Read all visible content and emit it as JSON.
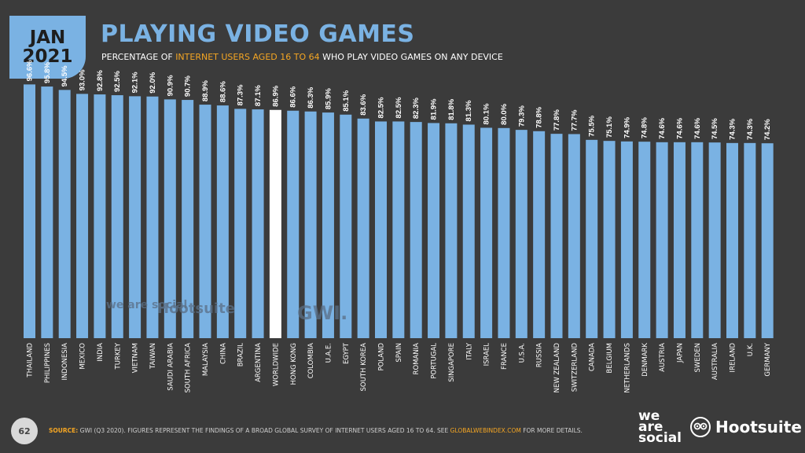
{
  "header": {
    "date_month": "JAN",
    "date_year": "2021",
    "title": "PLAYING VIDEO GAMES",
    "subtitle_pre": "PERCENTAGE OF ",
    "subtitle_highlight": "INTERNET USERS AGED 16 TO 64",
    "subtitle_post": " WHO PLAY VIDEO GAMES ON ANY DEVICE"
  },
  "watermarks": {
    "was": "we are social",
    "hootsuite": "Hootsuite",
    "gwi": "GWI."
  },
  "footer": {
    "page_number": "62",
    "source_label": "SOURCE:",
    "source_text": " GWI (Q3 2020). FIGURES REPRESENT THE FINDINGS OF A BROAD GLOBAL SURVEY OF INTERNET USERS AGED 16 TO 64. SEE ",
    "source_link": "GLOBALWEBINDEX.COM",
    "source_end": " FOR MORE DETAILS.",
    "logo_was": "we are social",
    "logo_hootsuite": "Hootsuite"
  },
  "colors": {
    "background": "#3b3b3b",
    "bar": "#7ab2e3",
    "highlight_bar": "#ffffff",
    "accent": "#f5a623"
  },
  "chart_data": {
    "type": "bar",
    "categories": [
      "THAILAND",
      "PHILIPPINES",
      "INDONESIA",
      "MEXICO",
      "INDIA",
      "TURKEY",
      "VIETNAM",
      "TAIWAN",
      "SAUDI ARABIA",
      "SOUTH AFRICA",
      "MALAYSIA",
      "CHINA",
      "BRAZIL",
      "ARGENTINA",
      "WORLDWIDE",
      "HONG KONG",
      "COLOMBIA",
      "U.A.E.",
      "EGYPT",
      "SOUTH KOREA",
      "POLAND",
      "SPAIN",
      "ROMANIA",
      "PORTUGAL",
      "SINGAPORE",
      "ITALY",
      "ISRAEL",
      "FRANCE",
      "U.S.A.",
      "RUSSIA",
      "NEW ZEALAND",
      "SWITZERLAND",
      "CANADA",
      "BELGIUM",
      "NETHERLANDS",
      "DENMARK",
      "AUSTRIA",
      "JAPAN",
      "SWEDEN",
      "AUSTRALIA",
      "IRELAND",
      "U.K.",
      "GERMANY"
    ],
    "values": [
      96.6,
      95.8,
      94.5,
      93.0,
      92.8,
      92.5,
      92.1,
      92.0,
      90.9,
      90.7,
      88.9,
      88.6,
      87.3,
      87.1,
      86.9,
      86.6,
      86.3,
      85.9,
      85.1,
      83.6,
      82.5,
      82.5,
      82.3,
      81.9,
      81.8,
      81.3,
      80.1,
      80.0,
      79.3,
      78.8,
      77.8,
      77.7,
      75.5,
      75.1,
      74.9,
      74.8,
      74.6,
      74.6,
      74.6,
      74.5,
      74.3,
      74.3,
      74.2
    ],
    "labels": [
      "96.6%",
      "95.8%",
      "94.5%",
      "93.0%",
      "92.8%",
      "92.5%",
      "92.1%",
      "92.0%",
      "90.9%",
      "90.7%",
      "88.9%",
      "88.6%",
      "87.3%",
      "87.1%",
      "86.9%",
      "86.6%",
      "86.3%",
      "85.9%",
      "85.1%",
      "83.6%",
      "82.5%",
      "82.5%",
      "82.3%",
      "81.9%",
      "81.8%",
      "81.3%",
      "80.1%",
      "80.0%",
      "79.3%",
      "78.8%",
      "77.8%",
      "77.7%",
      "75.5%",
      "75.1%",
      "74.9%",
      "74.8%",
      "74.6%",
      "74.6%",
      "74.6%",
      "74.5%",
      "74.3%",
      "74.3%",
      "74.2%"
    ],
    "highlight": "WORLDWIDE",
    "ylim": [
      0,
      100
    ],
    "grid": false
  }
}
